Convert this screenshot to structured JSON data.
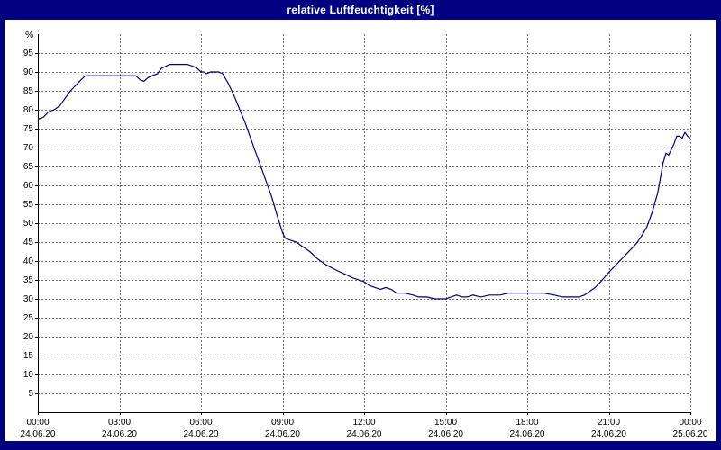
{
  "window": {
    "title": "relative Luftfeuchtigkeit [%]"
  },
  "colors": {
    "frame": "#000080",
    "title_text": "#ffffff",
    "plot_background": "#ffffff",
    "grid": "#707070",
    "axis": "#000000",
    "series_line": "#000080"
  },
  "chart_data": {
    "type": "line",
    "title": "relative Luftfeuchtigkeit [%]",
    "ylabel": "%",
    "xlabel": "",
    "ylim": [
      0,
      100
    ],
    "grid": true,
    "legend": "none",
    "y_ticks": [
      5,
      10,
      15,
      20,
      25,
      30,
      35,
      40,
      45,
      50,
      55,
      60,
      65,
      70,
      75,
      80,
      85,
      90,
      95
    ],
    "x_ticks": [
      {
        "hour": 0,
        "time": "00:00",
        "date": "24.06.20"
      },
      {
        "hour": 3,
        "time": "03:00",
        "date": "24.06.20"
      },
      {
        "hour": 6,
        "time": "06:00",
        "date": "24.06.20"
      },
      {
        "hour": 9,
        "time": "09:00",
        "date": "24.06.20"
      },
      {
        "hour": 12,
        "time": "12:00",
        "date": "24.06.20"
      },
      {
        "hour": 15,
        "time": "15:00",
        "date": "24.06.20"
      },
      {
        "hour": 18,
        "time": "18:00",
        "date": "24.06.20"
      },
      {
        "hour": 21,
        "time": "21:00",
        "date": "24.06.20"
      },
      {
        "hour": 24,
        "time": "00:00",
        "date": "25.06.20"
      }
    ],
    "series": [
      {
        "name": "relative Luftfeuchtigkeit",
        "color": "#000080",
        "points": [
          [
            0.0,
            77.5
          ],
          [
            0.2,
            78
          ],
          [
            0.4,
            79.5
          ],
          [
            0.6,
            80
          ],
          [
            0.8,
            81
          ],
          [
            1.0,
            83
          ],
          [
            1.2,
            85
          ],
          [
            1.4,
            86.5
          ],
          [
            1.6,
            88
          ],
          [
            1.75,
            89
          ],
          [
            2.0,
            89
          ],
          [
            2.5,
            89
          ],
          [
            3.0,
            89
          ],
          [
            3.3,
            89
          ],
          [
            3.6,
            89
          ],
          [
            3.75,
            88
          ],
          [
            3.9,
            87.5
          ],
          [
            4.05,
            88.5
          ],
          [
            4.2,
            89
          ],
          [
            4.4,
            89.5
          ],
          [
            4.55,
            91
          ],
          [
            4.7,
            91.5
          ],
          [
            4.85,
            92
          ],
          [
            5.2,
            92
          ],
          [
            5.5,
            92
          ],
          [
            5.7,
            91.5
          ],
          [
            5.85,
            91
          ],
          [
            6.0,
            90
          ],
          [
            6.1,
            90
          ],
          [
            6.2,
            89.5
          ],
          [
            6.35,
            90
          ],
          [
            6.5,
            90
          ],
          [
            6.65,
            90
          ],
          [
            6.8,
            89.5
          ],
          [
            7.0,
            87
          ],
          [
            7.2,
            84
          ],
          [
            7.4,
            80.5
          ],
          [
            7.6,
            77
          ],
          [
            7.8,
            73
          ],
          [
            8.0,
            69
          ],
          [
            8.2,
            65
          ],
          [
            8.4,
            61
          ],
          [
            8.6,
            57
          ],
          [
            8.8,
            52
          ],
          [
            9.0,
            47.5
          ],
          [
            9.1,
            46
          ],
          [
            9.3,
            45.5
          ],
          [
            9.5,
            45
          ],
          [
            9.7,
            44
          ],
          [
            10.0,
            42.5
          ],
          [
            10.3,
            40.5
          ],
          [
            10.6,
            39
          ],
          [
            11.0,
            37.5
          ],
          [
            11.3,
            36.5
          ],
          [
            11.6,
            35.5
          ],
          [
            12.0,
            34.5
          ],
          [
            12.2,
            33.5
          ],
          [
            12.4,
            33
          ],
          [
            12.6,
            32.5
          ],
          [
            12.8,
            33
          ],
          [
            13.0,
            32.5
          ],
          [
            13.2,
            31.5
          ],
          [
            13.5,
            31.5
          ],
          [
            13.8,
            31
          ],
          [
            14.0,
            30.5
          ],
          [
            14.3,
            30.5
          ],
          [
            14.6,
            30
          ],
          [
            15.0,
            30
          ],
          [
            15.2,
            30.5
          ],
          [
            15.4,
            31
          ],
          [
            15.6,
            30.5
          ],
          [
            15.8,
            30.5
          ],
          [
            16.0,
            31
          ],
          [
            16.3,
            30.5
          ],
          [
            16.6,
            31
          ],
          [
            17.0,
            31
          ],
          [
            17.3,
            31.5
          ],
          [
            17.6,
            31.5
          ],
          [
            18.0,
            31.5
          ],
          [
            18.3,
            31.5
          ],
          [
            18.6,
            31.5
          ],
          [
            19.0,
            31
          ],
          [
            19.3,
            30.5
          ],
          [
            19.6,
            30.5
          ],
          [
            19.9,
            30.5
          ],
          [
            20.1,
            31
          ],
          [
            20.3,
            32
          ],
          [
            20.5,
            33
          ],
          [
            20.7,
            34.5
          ],
          [
            21.0,
            37
          ],
          [
            21.2,
            38.5
          ],
          [
            21.4,
            40
          ],
          [
            21.6,
            41.5
          ],
          [
            21.8,
            43
          ],
          [
            22.0,
            44.5
          ],
          [
            22.2,
            46.5
          ],
          [
            22.4,
            49
          ],
          [
            22.6,
            53
          ],
          [
            22.8,
            58
          ],
          [
            22.9,
            62
          ],
          [
            23.0,
            66
          ],
          [
            23.1,
            68.5
          ],
          [
            23.2,
            68
          ],
          [
            23.3,
            69.5
          ],
          [
            23.4,
            71
          ],
          [
            23.5,
            73
          ],
          [
            23.6,
            73
          ],
          [
            23.7,
            72.5
          ],
          [
            23.8,
            74
          ],
          [
            23.9,
            73
          ],
          [
            24.0,
            72.5
          ]
        ]
      }
    ]
  }
}
